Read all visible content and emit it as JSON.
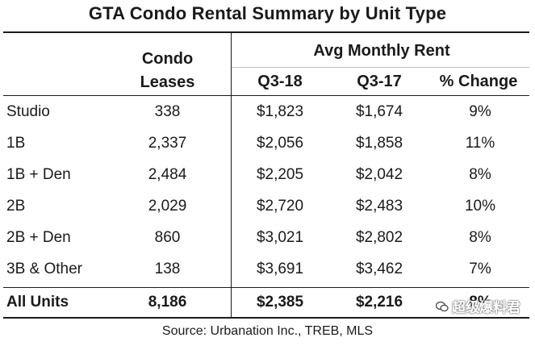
{
  "title": "GTA Condo Rental Summary by Unit Type",
  "headers": {
    "condo_leases_line1": "Condo",
    "condo_leases_line2": "Leases",
    "avg_rent": "Avg Monthly Rent",
    "q3_18": "Q3-18",
    "q3_17": "Q3-17",
    "pct_change": "% Change"
  },
  "rows": [
    {
      "unit": "Studio",
      "leases": "338",
      "q3_18": "$1,823",
      "q3_17": "$1,674",
      "change": "9%"
    },
    {
      "unit": "1B",
      "leases": "2,337",
      "q3_18": "$2,056",
      "q3_17": "$1,858",
      "change": "11%"
    },
    {
      "unit": "1B + Den",
      "leases": "2,484",
      "q3_18": "$2,205",
      "q3_17": "$2,042",
      "change": "8%"
    },
    {
      "unit": "2B",
      "leases": "2,029",
      "q3_18": "$2,720",
      "q3_17": "$2,483",
      "change": "10%"
    },
    {
      "unit": "2B + Den",
      "leases": "860",
      "q3_18": "$3,021",
      "q3_17": "$2,802",
      "change": "8%"
    },
    {
      "unit": "3B & Other",
      "leases": "138",
      "q3_18": "$3,691",
      "q3_17": "$3,462",
      "change": "7%"
    }
  ],
  "total": {
    "unit": "All Units",
    "leases": "8,186",
    "q3_18": "$2,385",
    "q3_17": "$2,216",
    "change": "8%"
  },
  "source": "Source: Urbanation Inc., TREB, MLS",
  "watermark": "超级爆料君"
}
